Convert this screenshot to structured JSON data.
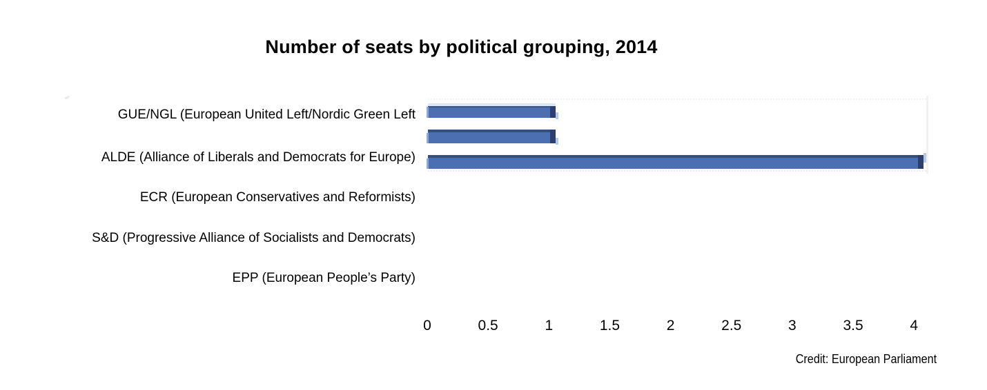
{
  "title": "Number of seats by political grouping, 2014",
  "credit": "Credit: European Parliament",
  "chart_data": {
    "type": "bar",
    "orientation": "horizontal",
    "title": "Number of seats by political grouping, 2014",
    "categories": [
      "GUE/NGL (European United Left/Nordic Green Left",
      "ALDE (Alliance of Liberals and Democrats for Europe)",
      "ECR (European Conservatives and Reformists)",
      "S&D (Progressive Alliance of Socialists and Democrats)",
      "EPP (European People’s Party)"
    ],
    "x_ticks": [
      0,
      0.5,
      1,
      1.5,
      2,
      2.5,
      3,
      3.5,
      4
    ],
    "xlim": [
      0,
      4.1
    ],
    "bars": [
      {
        "row_alignment": "GUE/NGL row",
        "value": 1.05
      },
      {
        "row_alignment": "unlabeled row between GUE/NGL and ALDE",
        "value": 1.05
      },
      {
        "row_alignment": "ALDE row",
        "value": 4.07
      }
    ],
    "bar_color": "#4c6fb1",
    "bar_top_edge_color": "#35507f",
    "bar_end_cap_color": "#2c3f70",
    "bar_highlight_color": "#d9e6f4",
    "grid": "off",
    "legend": "none",
    "note": "only three bars are rendered in this frame; axis lists five political groupings"
  }
}
